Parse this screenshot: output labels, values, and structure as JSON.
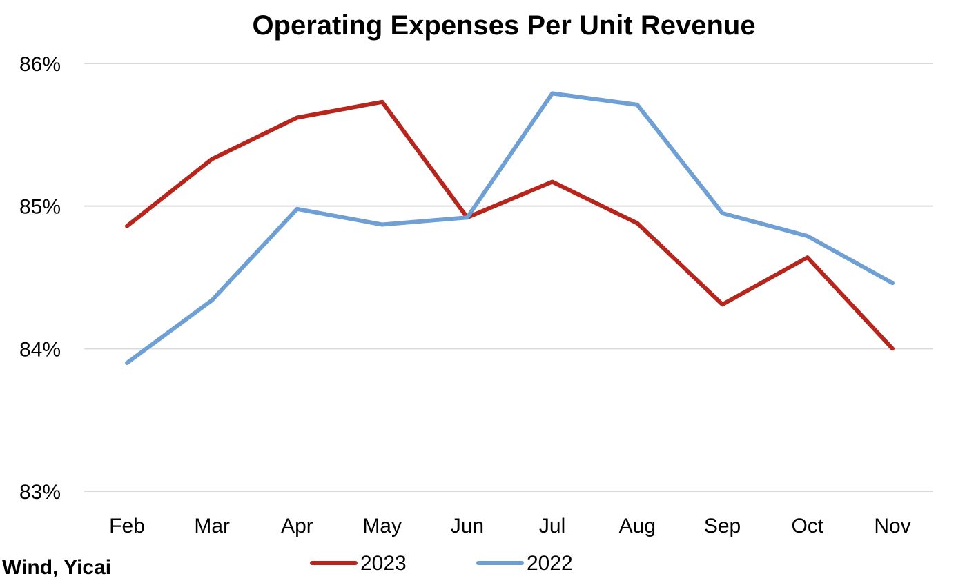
{
  "chart_data": {
    "type": "line",
    "title": "Operating Expenses Per Unit Revenue",
    "xlabel": "",
    "ylabel": "",
    "categories": [
      "Feb",
      "Mar",
      "Apr",
      "May",
      "Jun",
      "Jul",
      "Aug",
      "Sep",
      "Oct",
      "Nov"
    ],
    "ylim": [
      83,
      86
    ],
    "yticks": [
      83,
      84,
      85,
      86
    ],
    "ytick_labels": [
      "83%",
      "84%",
      "85%",
      "86%"
    ],
    "grid": true,
    "legend_position": "bottom",
    "series": [
      {
        "name": "2023",
        "color": "#b7251c",
        "values": [
          84.86,
          85.33,
          85.62,
          85.73,
          84.92,
          85.17,
          84.88,
          84.31,
          84.64,
          84.0
        ]
      },
      {
        "name": "2022",
        "color": "#6e9fd5",
        "values": [
          83.9,
          84.34,
          84.98,
          84.87,
          84.92,
          85.79,
          85.71,
          84.95,
          84.79,
          84.46
        ]
      }
    ],
    "source": "Wind, Yicai"
  }
}
